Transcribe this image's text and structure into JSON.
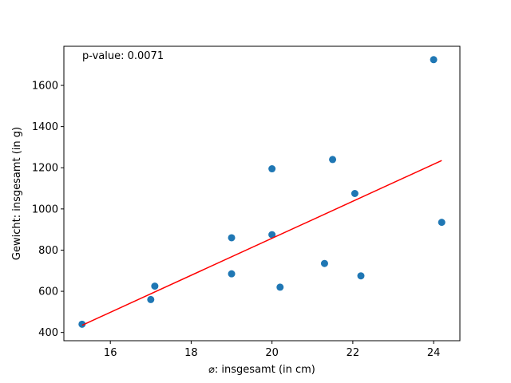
{
  "chart_data": {
    "type": "scatter",
    "title": "",
    "xlabel": "⌀: insgesamt (in cm)",
    "ylabel": "Gewicht: insgesamt (in g)",
    "xlim": [
      14.85,
      24.65
    ],
    "ylim": [
      360,
      1790
    ],
    "xticks": [
      16,
      18,
      20,
      22,
      24
    ],
    "yticks": [
      400,
      600,
      800,
      1000,
      1200,
      1400,
      1600
    ],
    "grid": false,
    "legend": "none",
    "annotation": "p-value: 0.0071",
    "series": [
      {
        "kind": "points",
        "color": "#1f77b4",
        "points": [
          {
            "x": 15.3,
            "y": 440
          },
          {
            "x": 17.0,
            "y": 560
          },
          {
            "x": 17.1,
            "y": 625
          },
          {
            "x": 19.0,
            "y": 860
          },
          {
            "x": 19.0,
            "y": 685
          },
          {
            "x": 20.0,
            "y": 1195
          },
          {
            "x": 20.0,
            "y": 875
          },
          {
            "x": 20.2,
            "y": 620
          },
          {
            "x": 21.3,
            "y": 735
          },
          {
            "x": 21.5,
            "y": 1240
          },
          {
            "x": 22.05,
            "y": 1075
          },
          {
            "x": 22.2,
            "y": 675
          },
          {
            "x": 24.0,
            "y": 1725
          },
          {
            "x": 24.2,
            "y": 935
          }
        ]
      },
      {
        "kind": "fit-line",
        "color": "#ff0000",
        "points": [
          {
            "x": 15.3,
            "y": 435
          },
          {
            "x": 24.2,
            "y": 1235
          }
        ]
      }
    ]
  }
}
